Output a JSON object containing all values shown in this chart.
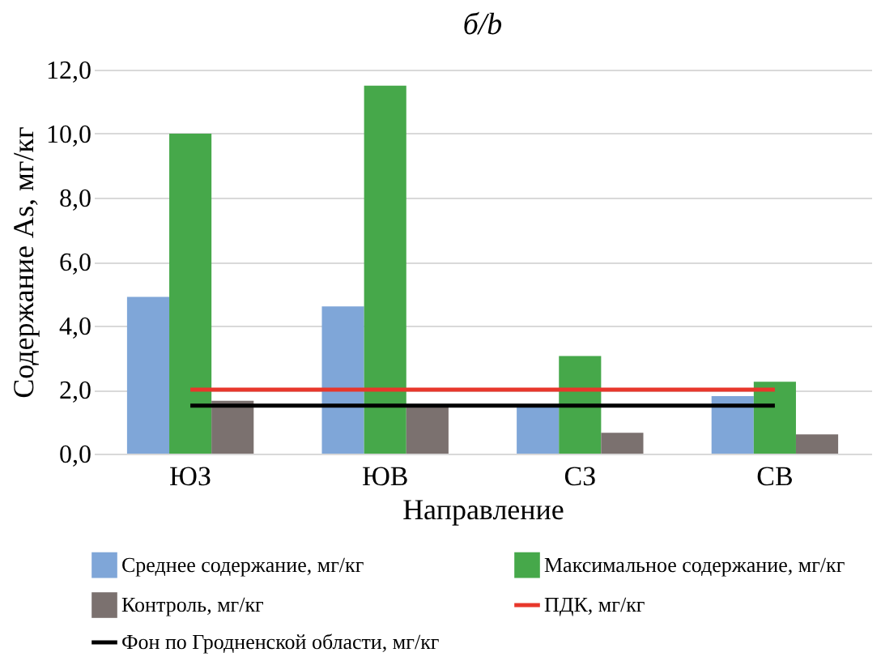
{
  "chart_data": {
    "type": "bar",
    "title": "б/b",
    "xlabel": "Направление",
    "ylabel": "Содержание As, мг/кг",
    "categories": [
      "ЮЗ",
      "ЮВ",
      "СЗ",
      "СВ"
    ],
    "series": [
      {
        "name": "Среднее содержание, мг/кг",
        "color": "#7fa6d8",
        "values": [
          4.9,
          4.6,
          1.5,
          1.8
        ]
      },
      {
        "name": "Максимальное содержание, мг/кг",
        "color": "#46a84a",
        "values": [
          10.0,
          11.5,
          3.05,
          2.25
        ]
      },
      {
        "name": "Контроль, мг/кг",
        "color": "#7b716f",
        "values": [
          1.65,
          1.5,
          0.65,
          0.6
        ]
      },
      {
        "name": "ПДК, мг/кг",
        "type": "line",
        "color": "#e8372b",
        "values": [
          2.0,
          2.0,
          2.0,
          2.0
        ]
      },
      {
        "name": "Фон по Гродненской области, мг/кг",
        "type": "line",
        "color": "#000000",
        "values": [
          1.5,
          1.5,
          1.5,
          1.5
        ]
      }
    ],
    "ylim": [
      0,
      12
    ],
    "yticks": [
      {
        "value": 0,
        "label": "0,0"
      },
      {
        "value": 2,
        "label": "2,0"
      },
      {
        "value": 4,
        "label": "4,0"
      },
      {
        "value": 6,
        "label": "6,0"
      },
      {
        "value": 8,
        "label": "8,0"
      },
      {
        "value": 10,
        "label": "10,0"
      },
      {
        "value": 12,
        "label": "12,0"
      }
    ],
    "grid": "y",
    "legend": "bottom",
    "marker": "none",
    "line_style": "solid"
  }
}
